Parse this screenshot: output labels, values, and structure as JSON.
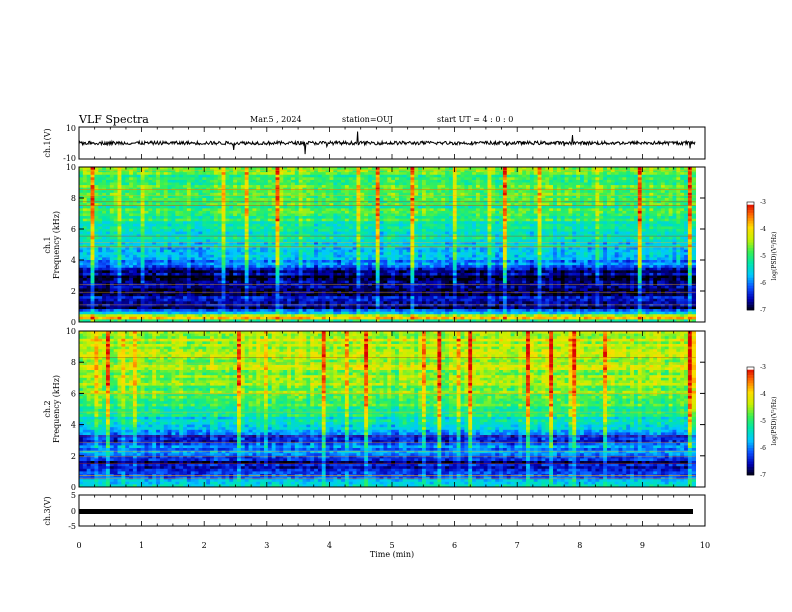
{
  "header": {
    "title": "VLF Spectra",
    "date": "Mar.5 , 2024",
    "station": "station=OUJ",
    "start_ut": "start UT = 4 : 0 : 0"
  },
  "colors": {
    "colormap": [
      "#000000",
      "#0000b4",
      "#0a50ff",
      "#00c8ff",
      "#00e6aa",
      "#3cf050",
      "#c8f000",
      "#ffdc00",
      "#ff6e00",
      "#dc0000",
      "#ffffff"
    ]
  },
  "chart_data": [
    {
      "type": "line",
      "panel": "ch1-waveform",
      "ylabel": "ch.1(V)",
      "ylim": [
        -10,
        10
      ],
      "yticks": [
        "10",
        "-10"
      ],
      "xlim": [
        0,
        10
      ],
      "series": [
        {
          "values_description": "",
          "baseline": 0
        }
      ]
    },
    {
      "type": "heatmap",
      "panel": "ch1-spectrogram",
      "ylabel": "ch.1 Frequency (kHz)",
      "ylim": [
        0,
        10
      ],
      "yticks": [
        "0",
        "2",
        "4",
        "6",
        "8",
        "10"
      ],
      "xlim": [
        0,
        10
      ],
      "data_end_min": 9.85,
      "colorbar": {
        "label": "log(PSD)(V²/Hz)",
        "range": [
          -7,
          -3
        ],
        "ticks": [
          "-3",
          "-4",
          "-5",
          "-6",
          "-7"
        ]
      },
      "band_levels_khz_to_log_psd": [
        [
          0.0,
          -5.6
        ],
        [
          0.3,
          -3.6
        ],
        [
          0.6,
          -5.8
        ],
        [
          1.0,
          -6.8
        ],
        [
          1.5,
          -6.3
        ],
        [
          2.0,
          -6.9
        ],
        [
          2.6,
          -6.7
        ],
        [
          3.0,
          -6.9
        ],
        [
          3.6,
          -6.0
        ],
        [
          4.2,
          -5.8
        ],
        [
          5.0,
          -5.5
        ],
        [
          6.0,
          -5.1
        ],
        [
          7.0,
          -5.0
        ],
        [
          8.0,
          -4.9
        ],
        [
          10.0,
          -4.8
        ]
      ]
    },
    {
      "type": "heatmap",
      "panel": "ch2-spectrogram",
      "ylabel": "ch.2 Frequency (kHz)",
      "ylim": [
        0,
        10
      ],
      "yticks": [
        "0",
        "2",
        "4",
        "6",
        "8",
        "10"
      ],
      "xlim": [
        0,
        10
      ],
      "data_end_min": 9.85,
      "colorbar": {
        "label": "log(PSD)(V²/Hz)",
        "range": [
          -7,
          -3
        ],
        "ticks": [
          "-3",
          "-4",
          "-5",
          "-6",
          "-7"
        ]
      },
      "band_levels_khz_to_log_psd": [
        [
          0.0,
          -5.3
        ],
        [
          0.5,
          -5.9
        ],
        [
          1.0,
          -6.2
        ],
        [
          1.6,
          -6.6
        ],
        [
          2.0,
          -6.0
        ],
        [
          2.6,
          -5.9
        ],
        [
          3.2,
          -6.4
        ],
        [
          4.0,
          -5.4
        ],
        [
          5.0,
          -5.0
        ],
        [
          6.0,
          -4.7
        ],
        [
          7.0,
          -4.5
        ],
        [
          8.0,
          -4.4
        ],
        [
          10.0,
          -4.3
        ]
      ]
    },
    {
      "type": "line",
      "panel": "ch3-waveform",
      "ylabel": "ch.3(V)",
      "ylim": [
        -5,
        5
      ],
      "yticks": [
        "5",
        "0",
        "-5"
      ],
      "xlim": [
        0,
        10
      ],
      "series": [
        {
          "values_description": "",
          "baseline": -1
        }
      ]
    }
  ],
  "x_axis": {
    "label": "Time (min)",
    "ticks": [
      "0",
      "1",
      "2",
      "3",
      "4",
      "5",
      "6",
      "7",
      "8",
      "9",
      "10"
    ]
  }
}
